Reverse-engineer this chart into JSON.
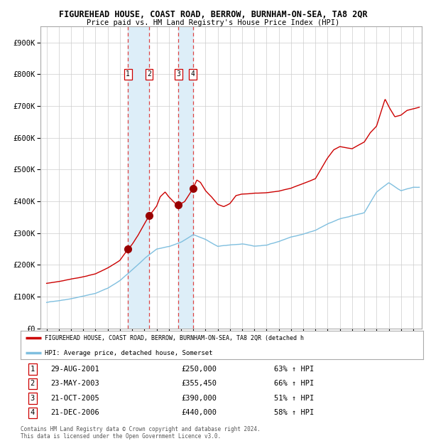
{
  "title": "FIGUREHEAD HOUSE, COAST ROAD, BERROW, BURNHAM-ON-SEA, TA8 2QR",
  "subtitle": "Price paid vs. HM Land Registry's House Price Index (HPI)",
  "legend_line1": "FIGUREHEAD HOUSE, COAST ROAD, BERROW, BURNHAM-ON-SEA, TA8 2QR (detached h",
  "legend_line2": "HPI: Average price, detached house, Somerset",
  "footer1": "Contains HM Land Registry data © Crown copyright and database right 2024.",
  "footer2": "This data is licensed under the Open Government Licence v3.0.",
  "transactions": [
    {
      "num": 1,
      "date": "29-AUG-2001",
      "price": 250000,
      "pct": "63%",
      "year": 2001.66
    },
    {
      "num": 2,
      "date": "23-MAY-2003",
      "price": 355450,
      "pct": "66%",
      "year": 2003.39
    },
    {
      "num": 3,
      "date": "21-OCT-2005",
      "price": 390000,
      "pct": "51%",
      "year": 2005.8
    },
    {
      "num": 4,
      "date": "21-DEC-2006",
      "price": 440000,
      "pct": "58%",
      "year": 2006.97
    }
  ],
  "hpi_color": "#7fbfdf",
  "house_color": "#cc0000",
  "shading_color": "#ddeef8",
  "dashed_color": "#dd4444",
  "dot_color": "#990000",
  "background_color": "#ffffff",
  "grid_color": "#cccccc",
  "ylim": [
    0,
    950000
  ],
  "yticks": [
    0,
    100000,
    200000,
    300000,
    400000,
    500000,
    600000,
    700000,
    800000,
    900000
  ],
  "ytick_labels": [
    "£0",
    "£100K",
    "£200K",
    "£300K",
    "£400K",
    "£500K",
    "£600K",
    "£700K",
    "£800K",
    "£900K"
  ],
  "xlim_start": 1994.5,
  "xlim_end": 2025.7
}
